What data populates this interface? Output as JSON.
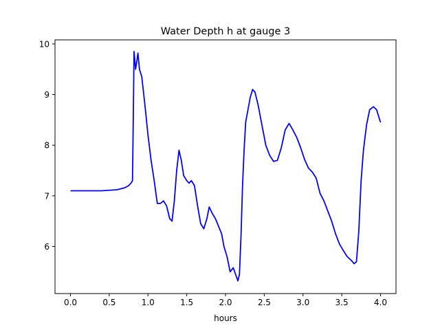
{
  "chart_data": {
    "type": "line",
    "title": "Water Depth h at gauge 3",
    "xlabel": "hours",
    "ylabel": "",
    "xlim": [
      -0.2,
      4.2
    ],
    "ylim": [
      5.07,
      10.08
    ],
    "xticks": [
      {
        "value": 0.0,
        "label": "0.0"
      },
      {
        "value": 0.5,
        "label": "0.5"
      },
      {
        "value": 1.0,
        "label": "1.0"
      },
      {
        "value": 1.5,
        "label": "1.5"
      },
      {
        "value": 2.0,
        "label": "2.0"
      },
      {
        "value": 2.5,
        "label": "2.5"
      },
      {
        "value": 3.0,
        "label": "3.0"
      },
      {
        "value": 3.5,
        "label": "3.5"
      },
      {
        "value": 4.0,
        "label": "4.0"
      }
    ],
    "yticks": [
      {
        "value": 6,
        "label": "6"
      },
      {
        "value": 7,
        "label": "7"
      },
      {
        "value": 8,
        "label": "8"
      },
      {
        "value": 9,
        "label": "9"
      },
      {
        "value": 10,
        "label": "10"
      }
    ],
    "grid": false,
    "legend": "none",
    "series": [
      {
        "color": "#0000ff",
        "points": [
          [
            0.0,
            7.1
          ],
          [
            0.1,
            7.1
          ],
          [
            0.2,
            7.1
          ],
          [
            0.3,
            7.1
          ],
          [
            0.4,
            7.1
          ],
          [
            0.5,
            7.11
          ],
          [
            0.6,
            7.12
          ],
          [
            0.7,
            7.16
          ],
          [
            0.75,
            7.2
          ],
          [
            0.78,
            7.25
          ],
          [
            0.8,
            7.3
          ],
          [
            0.81,
            8.5
          ],
          [
            0.82,
            9.85
          ],
          [
            0.84,
            9.5
          ],
          [
            0.86,
            9.7
          ],
          [
            0.87,
            9.82
          ],
          [
            0.89,
            9.5
          ],
          [
            0.92,
            9.35
          ],
          [
            0.96,
            8.8
          ],
          [
            1.0,
            8.2
          ],
          [
            1.04,
            7.7
          ],
          [
            1.08,
            7.3
          ],
          [
            1.12,
            6.85
          ],
          [
            1.16,
            6.85
          ],
          [
            1.2,
            6.9
          ],
          [
            1.24,
            6.8
          ],
          [
            1.28,
            6.55
          ],
          [
            1.31,
            6.5
          ],
          [
            1.34,
            6.9
          ],
          [
            1.37,
            7.5
          ],
          [
            1.4,
            7.9
          ],
          [
            1.43,
            7.7
          ],
          [
            1.46,
            7.4
          ],
          [
            1.5,
            7.3
          ],
          [
            1.53,
            7.25
          ],
          [
            1.56,
            7.3
          ],
          [
            1.6,
            7.2
          ],
          [
            1.64,
            6.8
          ],
          [
            1.68,
            6.45
          ],
          [
            1.72,
            6.35
          ],
          [
            1.76,
            6.55
          ],
          [
            1.79,
            6.78
          ],
          [
            1.83,
            6.65
          ],
          [
            1.87,
            6.55
          ],
          [
            1.91,
            6.4
          ],
          [
            1.95,
            6.25
          ],
          [
            1.98,
            6.0
          ],
          [
            2.02,
            5.8
          ],
          [
            2.06,
            5.5
          ],
          [
            2.1,
            5.58
          ],
          [
            2.13,
            5.45
          ],
          [
            2.16,
            5.32
          ],
          [
            2.18,
            5.45
          ],
          [
            2.2,
            6.2
          ],
          [
            2.22,
            7.2
          ],
          [
            2.24,
            7.9
          ],
          [
            2.26,
            8.45
          ],
          [
            2.29,
            8.7
          ],
          [
            2.32,
            8.95
          ],
          [
            2.35,
            9.1
          ],
          [
            2.38,
            9.05
          ],
          [
            2.42,
            8.8
          ],
          [
            2.47,
            8.4
          ],
          [
            2.52,
            8.0
          ],
          [
            2.57,
            7.8
          ],
          [
            2.62,
            7.68
          ],
          [
            2.67,
            7.7
          ],
          [
            2.72,
            7.95
          ],
          [
            2.77,
            8.3
          ],
          [
            2.82,
            8.43
          ],
          [
            2.87,
            8.3
          ],
          [
            2.92,
            8.15
          ],
          [
            2.97,
            7.95
          ],
          [
            3.02,
            7.72
          ],
          [
            3.07,
            7.55
          ],
          [
            3.12,
            7.47
          ],
          [
            3.17,
            7.35
          ],
          [
            3.22,
            7.05
          ],
          [
            3.27,
            6.9
          ],
          [
            3.32,
            6.7
          ],
          [
            3.37,
            6.5
          ],
          [
            3.42,
            6.25
          ],
          [
            3.47,
            6.05
          ],
          [
            3.52,
            5.92
          ],
          [
            3.57,
            5.8
          ],
          [
            3.62,
            5.73
          ],
          [
            3.66,
            5.66
          ],
          [
            3.69,
            5.7
          ],
          [
            3.72,
            6.3
          ],
          [
            3.75,
            7.3
          ],
          [
            3.78,
            7.9
          ],
          [
            3.82,
            8.4
          ],
          [
            3.86,
            8.7
          ],
          [
            3.91,
            8.76
          ],
          [
            3.95,
            8.7
          ],
          [
            3.99,
            8.5
          ],
          [
            4.0,
            8.45
          ]
        ]
      }
    ]
  }
}
